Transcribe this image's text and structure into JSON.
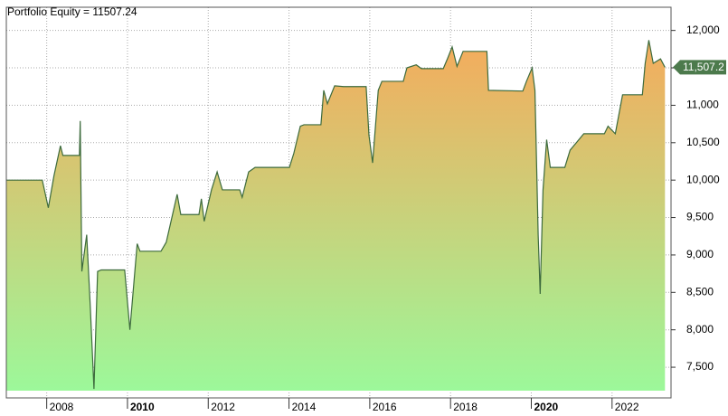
{
  "chart_data": {
    "type": "area",
    "title": "Portfolio Equity = 11507.24",
    "series": [
      {
        "color": "#3d6b3d",
        "x": [
          2007.0,
          2007.89,
          2008.04,
          2008.18,
          2008.34,
          2008.4,
          2008.81,
          2008.83,
          2008.87,
          2008.99,
          2009.08,
          2009.17,
          2009.26,
          2009.35,
          2009.93,
          2010.06,
          2010.24,
          2010.31,
          2010.83,
          2010.96,
          2011.23,
          2011.32,
          2011.77,
          2011.83,
          2011.9,
          2012.08,
          2012.22,
          2012.35,
          2012.78,
          2012.84,
          2013.0,
          2013.16,
          2014.01,
          2014.12,
          2014.28,
          2014.37,
          2014.79,
          2014.86,
          2014.95,
          2015.13,
          2015.35,
          2015.91,
          2015.98,
          2016.07,
          2016.21,
          2016.3,
          2016.83,
          2016.92,
          2017.15,
          2017.28,
          2017.82,
          2017.93,
          2018.04,
          2018.16,
          2018.31,
          2018.9,
          2018.94,
          2019.79,
          2019.88,
          2020.02,
          2020.09,
          2020.17,
          2020.22,
          2020.29,
          2020.38,
          2020.47,
          2020.83,
          2020.96,
          2021.3,
          2021.81,
          2021.9,
          2022.08,
          2022.26,
          2022.75,
          2022.82,
          2022.91,
          2023.02,
          2023.2,
          2023.31
        ],
        "values": [
          10000,
          10000,
          9630,
          10060,
          10460,
          10330,
          10330,
          10790,
          8780,
          9270,
          8300,
          7210,
          8780,
          8800,
          8800,
          8000,
          9150,
          9050,
          9050,
          9170,
          9810,
          9540,
          9540,
          9750,
          9450,
          9870,
          10110,
          9870,
          9870,
          9770,
          10110,
          10170,
          10170,
          10360,
          10720,
          10740,
          10740,
          11200,
          11020,
          11260,
          11250,
          11250,
          10600,
          10230,
          11200,
          11320,
          11320,
          11500,
          11540,
          11490,
          11490,
          11630,
          11780,
          11520,
          11720,
          11720,
          11200,
          11190,
          11320,
          11500,
          11200,
          9270,
          8480,
          9870,
          10540,
          10170,
          10170,
          10400,
          10620,
          10620,
          10720,
          10620,
          11140,
          11140,
          11560,
          11870,
          11560,
          11620,
          11507.24
        ]
      }
    ],
    "last_label": {
      "value": 11507.24,
      "label": "11,507.2"
    },
    "xlim": [
      2007.0,
      2023.46
    ],
    "xticks": [
      2008,
      2010,
      2012,
      2014,
      2016,
      2018,
      2020,
      2022
    ],
    "ylim": [
      7090,
      12310
    ],
    "yticks": [
      {
        "value": 7500,
        "label": "7,500"
      },
      {
        "value": 8000,
        "label": "8,000"
      },
      {
        "value": 8500,
        "label": "8,500"
      },
      {
        "value": 9000,
        "label": "9,000"
      },
      {
        "value": 9500,
        "label": "9,500"
      },
      {
        "value": 10000,
        "label": "10,000"
      },
      {
        "value": 10500,
        "label": "10,500"
      },
      {
        "value": 11000,
        "label": "11,000"
      },
      {
        "value": 11500,
        "label": "11,500"
      },
      {
        "value": 12000,
        "label": "12,000"
      }
    ],
    "grid": true,
    "fill_top": "#f5ab5c",
    "fill_bottom": "#9cf89a"
  }
}
